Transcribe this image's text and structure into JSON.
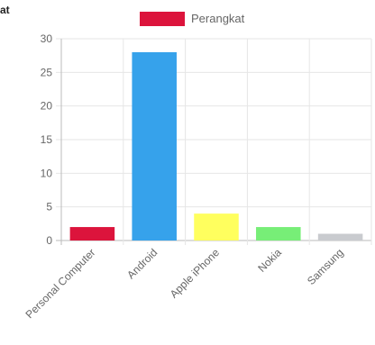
{
  "header": {
    "fragment": "at"
  },
  "chart_data": {
    "type": "bar",
    "categories": [
      "Personal Computer",
      "Android",
      "Apple iPhone",
      "Nokia",
      "Samsung"
    ],
    "series": [
      {
        "name": "Perangkat",
        "values": [
          2,
          28,
          4,
          2,
          1
        ]
      }
    ],
    "bar_colors": [
      "#dc143c",
      "#36a2eb",
      "#ffff5e",
      "#77ee77",
      "#c9cbcf"
    ],
    "legend_color": "#dc143c",
    "ylim": [
      0,
      30
    ],
    "yticks": [
      0,
      5,
      10,
      15,
      20,
      25,
      30
    ],
    "grid": true,
    "legend": "top"
  }
}
